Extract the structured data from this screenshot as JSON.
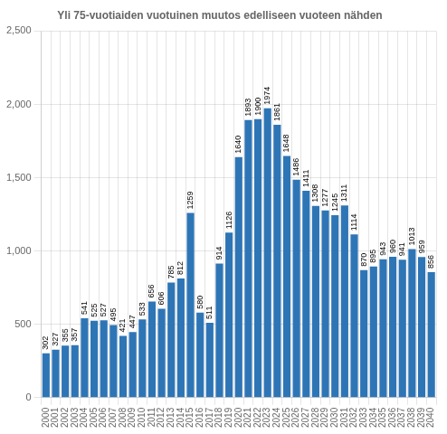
{
  "chart_data": {
    "type": "bar",
    "title": "Yli 75-vuotiaiden vuotuinen muutos edelliseen vuoteen nähden",
    "categories": [
      "2000",
      "2001",
      "2002",
      "2003",
      "2004",
      "2005",
      "2006",
      "2007",
      "2008",
      "2009",
      "2010",
      "2011",
      "2012",
      "2013",
      "2014",
      "2015",
      "2016",
      "2017",
      "2018",
      "2019",
      "2020",
      "2021",
      "2022",
      "2023",
      "2024",
      "2025",
      "2026",
      "2027",
      "2028",
      "2029",
      "2030",
      "2031",
      "2032",
      "2033",
      "2034",
      "2035",
      "2036",
      "2037",
      "2038",
      "2039",
      "2040"
    ],
    "values": [
      302,
      327,
      355,
      357,
      541,
      525,
      527,
      495,
      421,
      447,
      533,
      656,
      606,
      785,
      812,
      1259,
      580,
      511,
      914,
      1126,
      1640,
      1893,
      1900,
      1974,
      1861,
      1648,
      1486,
      1411,
      1308,
      1277,
      1245,
      1311,
      1114,
      870,
      895,
      943,
      960,
      941,
      1013,
      959,
      856
    ],
    "color": "#2e75b6",
    "ylim": [
      0,
      2500
    ],
    "yticks": [
      0,
      500,
      1000,
      1500,
      2000,
      2500
    ],
    "grid": true,
    "data_labels": true
  }
}
